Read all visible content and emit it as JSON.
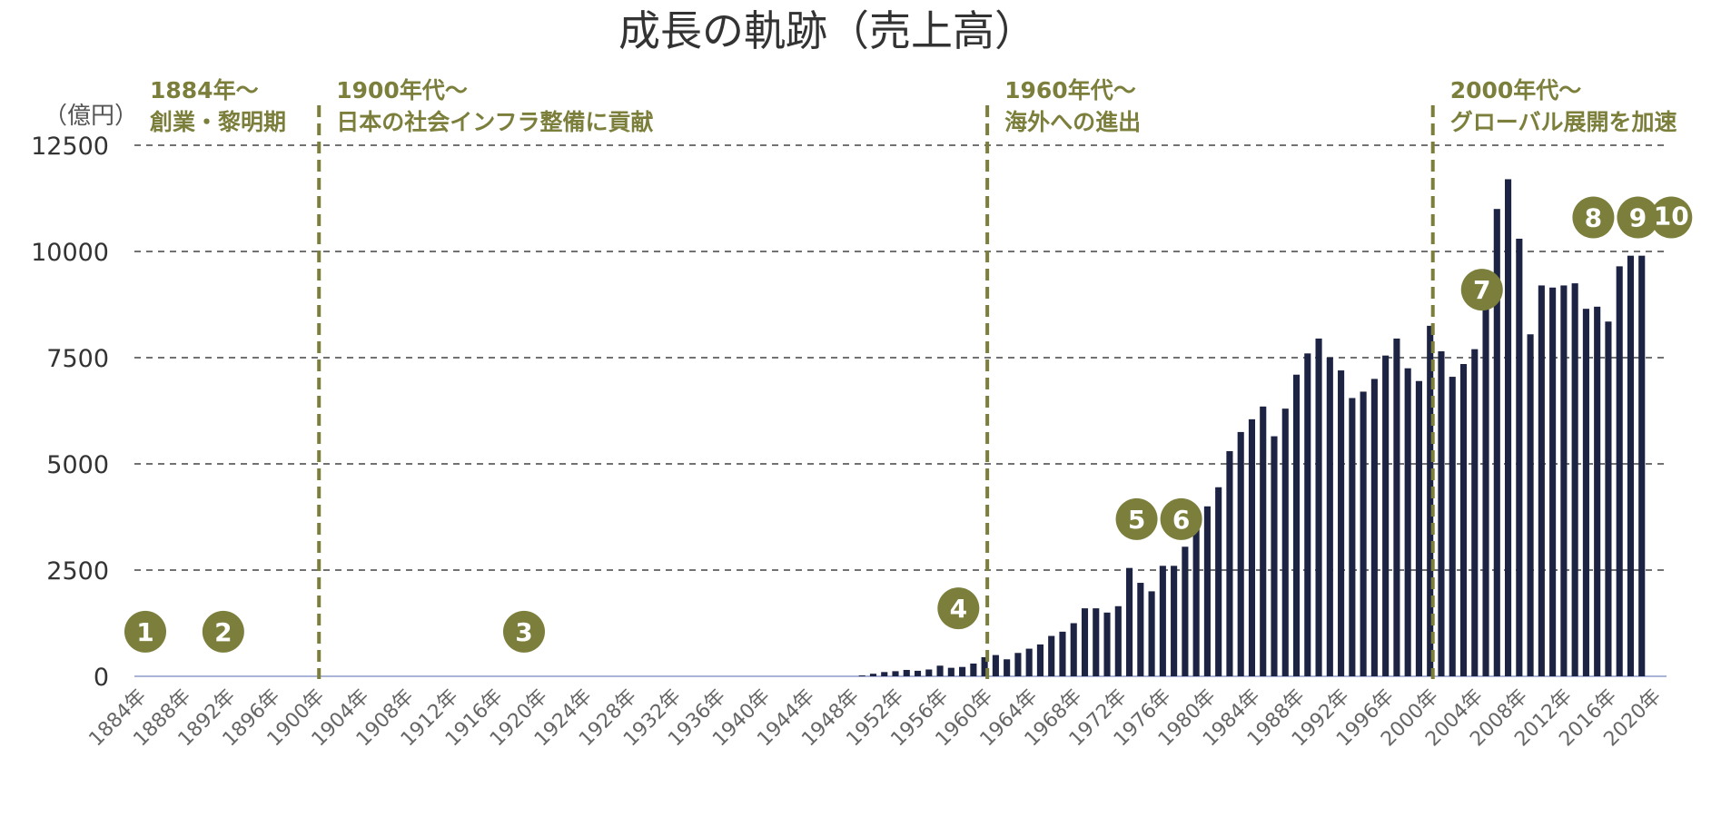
{
  "title": "成長の軌跡（売上高）",
  "colors": {
    "bar": "#1d2343",
    "accent": "#7c7f3b",
    "grid": "#444444",
    "baseline": "#aab4d6"
  },
  "chart_data": {
    "type": "bar",
    "title": "成長の軌跡（売上高）",
    "ylabel": "（億円）",
    "xlabel": "",
    "ylim": [
      0,
      12500
    ],
    "yticks": [
      "0",
      "2500",
      "5000",
      "7500",
      "10000",
      "12500"
    ],
    "ytick_values": [
      0,
      2500,
      5000,
      7500,
      10000,
      12500
    ],
    "grid": true,
    "x_start": 1884,
    "x_end": 2020,
    "xtick_labels": [
      "1884年",
      "1888年",
      "1892年",
      "1896年",
      "1900年",
      "1904年",
      "1908年",
      "1912年",
      "1916年",
      "1920年",
      "1924年",
      "1928年",
      "1932年",
      "1936年",
      "1940年",
      "1944年",
      "1948年",
      "1952年",
      "1956年",
      "1960年",
      "1964年",
      "1968年",
      "1972年",
      "1976年",
      "1980年",
      "1984年",
      "1988年",
      "1992年",
      "1996年",
      "2000年",
      "2004年",
      "2008年",
      "2012年",
      "2016年",
      "2020年"
    ],
    "years": [
      1949,
      1950,
      1951,
      1952,
      1953,
      1954,
      1955,
      1956,
      1957,
      1958,
      1959,
      1960,
      1961,
      1962,
      1963,
      1964,
      1965,
      1966,
      1967,
      1968,
      1969,
      1970,
      1971,
      1972,
      1973,
      1974,
      1975,
      1976,
      1977,
      1978,
      1979,
      1980,
      1981,
      1982,
      1983,
      1984,
      1985,
      1986,
      1987,
      1988,
      1989,
      1990,
      1991,
      1992,
      1993,
      1994,
      1995,
      1996,
      1997,
      1998,
      1999,
      2000,
      2001,
      2002,
      2003,
      2004,
      2005,
      2006,
      2007,
      2008,
      2009,
      2010,
      2011,
      2012,
      2013,
      2014,
      2015,
      2016,
      2017,
      2018,
      2019
    ],
    "values": [
      20,
      60,
      100,
      120,
      150,
      130,
      160,
      250,
      200,
      220,
      300,
      450,
      500,
      400,
      550,
      650,
      750,
      950,
      1050,
      1250,
      1600,
      1600,
      1500,
      1650,
      2550,
      2200,
      2000,
      2600,
      2600,
      3050,
      3900,
      4000,
      4450,
      5300,
      5750,
      6050,
      6350,
      5650,
      6300,
      7100,
      7600,
      7950,
      7500,
      7200,
      6550,
      6700,
      7000,
      7550,
      7950,
      7250,
      6950,
      8250,
      7650,
      7050,
      7350,
      7700,
      8700,
      11000,
      11700,
      10300,
      8050,
      9200,
      9150,
      9200,
      9250,
      8650,
      8700,
      8350,
      9650,
      9900,
      9900
    ],
    "dividers": [
      1900,
      1960,
      2000
    ],
    "eras": [
      {
        "line1": "1884年～",
        "line2": "創業・黎明期"
      },
      {
        "line1": "1900年代～",
        "line2": "日本の社会インフラ整備に貢献"
      },
      {
        "line1": "1960年代～",
        "line2": "海外への進出"
      },
      {
        "line1": "2000年代～",
        "line2": "グローバル展開を加速"
      }
    ],
    "markers": [
      {
        "label": "1",
        "year": 1884,
        "level": 1050
      },
      {
        "label": "2",
        "year": 1891,
        "level": 1050
      },
      {
        "label": "3",
        "year": 1918,
        "level": 1050
      },
      {
        "label": "4",
        "year": 1957,
        "level": 1600
      },
      {
        "label": "5",
        "year": 1973,
        "level": 3700
      },
      {
        "label": "6",
        "year": 1977,
        "level": 3700
      },
      {
        "label": "7",
        "year": 2004,
        "level": 9100
      },
      {
        "label": "8",
        "year": 2014,
        "level": 10800
      },
      {
        "label": "9",
        "year": 2018,
        "level": 10800
      },
      {
        "label": "10",
        "year": 2021,
        "level": 10800
      }
    ]
  }
}
